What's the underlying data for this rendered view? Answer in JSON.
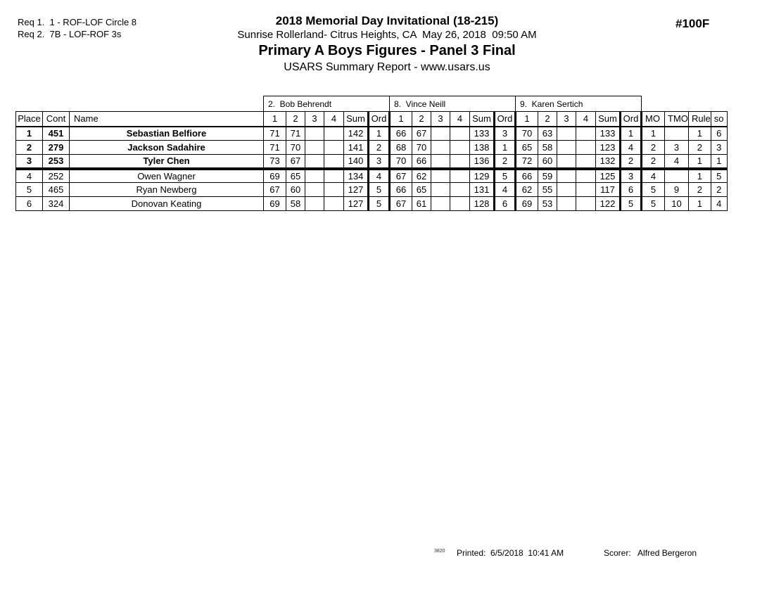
{
  "header": {
    "req_line_1": "Req 1.  1 - ROF-LOF Circle 8",
    "req_line_2": "Req 2.  7B - LOF-ROF 3s",
    "title": "2018 Memorial Day Invitational (18-215)",
    "venue_line": "Sunrise Rollerland- Citrus Heights, CA  May 26, 2018  09:50 AM",
    "event_title": "Primary A Boys Figures - Panel 3 Final",
    "report_line": "USARS Summary Report - www.usars.us",
    "event_number": "#100F"
  },
  "table": {
    "judges": [
      "2.  Bob Behrendt",
      "8.  Vince Neill",
      "9.  Karen Sertich"
    ],
    "base_headers": [
      "Place",
      "Cont",
      "Name"
    ],
    "judge_headers": [
      "1",
      "2",
      "3",
      "4",
      "Sum",
      "Ord"
    ],
    "tail_headers": [
      "MO",
      "TMO",
      "Rule",
      "so"
    ],
    "rows": [
      {
        "place": "1",
        "cont": "451",
        "name": "Sebastian Belfiore",
        "bold": true,
        "judges": [
          {
            "scores": [
              "71",
              "71",
              "",
              ""
            ],
            "sum": "142",
            "ord": "1"
          },
          {
            "scores": [
              "66",
              "67",
              "",
              ""
            ],
            "sum": "133",
            "ord": "3"
          },
          {
            "scores": [
              "70",
              "63",
              "",
              ""
            ],
            "sum": "133",
            "ord": "1"
          }
        ],
        "mo": "1",
        "tmo": "",
        "rule": "1",
        "so": "6"
      },
      {
        "place": "2",
        "cont": "279",
        "name": "Jackson Sadahire",
        "bold": true,
        "judges": [
          {
            "scores": [
              "71",
              "70",
              "",
              ""
            ],
            "sum": "141",
            "ord": "2"
          },
          {
            "scores": [
              "68",
              "70",
              "",
              ""
            ],
            "sum": "138",
            "ord": "1"
          },
          {
            "scores": [
              "65",
              "58",
              "",
              ""
            ],
            "sum": "123",
            "ord": "4"
          }
        ],
        "mo": "2",
        "tmo": "3",
        "rule": "2",
        "so": "3"
      },
      {
        "place": "3",
        "cont": "253",
        "name": "Tyler Chen",
        "bold": true,
        "judges": [
          {
            "scores": [
              "73",
              "67",
              "",
              ""
            ],
            "sum": "140",
            "ord": "3"
          },
          {
            "scores": [
              "70",
              "66",
              "",
              ""
            ],
            "sum": "136",
            "ord": "2"
          },
          {
            "scores": [
              "72",
              "60",
              "",
              ""
            ],
            "sum": "132",
            "ord": "2"
          }
        ],
        "mo": "2",
        "tmo": "4",
        "rule": "1",
        "so": "1"
      },
      {
        "place": "4",
        "cont": "252",
        "name": "Owen Wagner",
        "bold": false,
        "judges": [
          {
            "scores": [
              "69",
              "65",
              "",
              ""
            ],
            "sum": "134",
            "ord": "4"
          },
          {
            "scores": [
              "67",
              "62",
              "",
              ""
            ],
            "sum": "129",
            "ord": "5"
          },
          {
            "scores": [
              "66",
              "59",
              "",
              ""
            ],
            "sum": "125",
            "ord": "3"
          }
        ],
        "mo": "4",
        "tmo": "",
        "rule": "1",
        "so": "5"
      },
      {
        "place": "5",
        "cont": "465",
        "name": "Ryan Newberg",
        "bold": false,
        "judges": [
          {
            "scores": [
              "67",
              "60",
              "",
              ""
            ],
            "sum": "127",
            "ord": "5"
          },
          {
            "scores": [
              "66",
              "65",
              "",
              ""
            ],
            "sum": "131",
            "ord": "4"
          },
          {
            "scores": [
              "62",
              "55",
              "",
              ""
            ],
            "sum": "117",
            "ord": "6"
          }
        ],
        "mo": "5",
        "tmo": "9",
        "rule": "2",
        "so": "2"
      },
      {
        "place": "6",
        "cont": "324",
        "name": "Donovan Keating",
        "bold": false,
        "judges": [
          {
            "scores": [
              "69",
              "58",
              "",
              ""
            ],
            "sum": "127",
            "ord": "5"
          },
          {
            "scores": [
              "67",
              "61",
              "",
              ""
            ],
            "sum": "128",
            "ord": "6"
          },
          {
            "scores": [
              "69",
              "53",
              "",
              ""
            ],
            "sum": "122",
            "ord": "5"
          }
        ],
        "mo": "5",
        "tmo": "10",
        "rule": "1",
        "so": "4"
      }
    ]
  },
  "footer": {
    "marker": "3820",
    "printed": "Printed:  6/5/2018  10:41 AM",
    "scorer": "Scorer:   Alfred Bergeron"
  }
}
